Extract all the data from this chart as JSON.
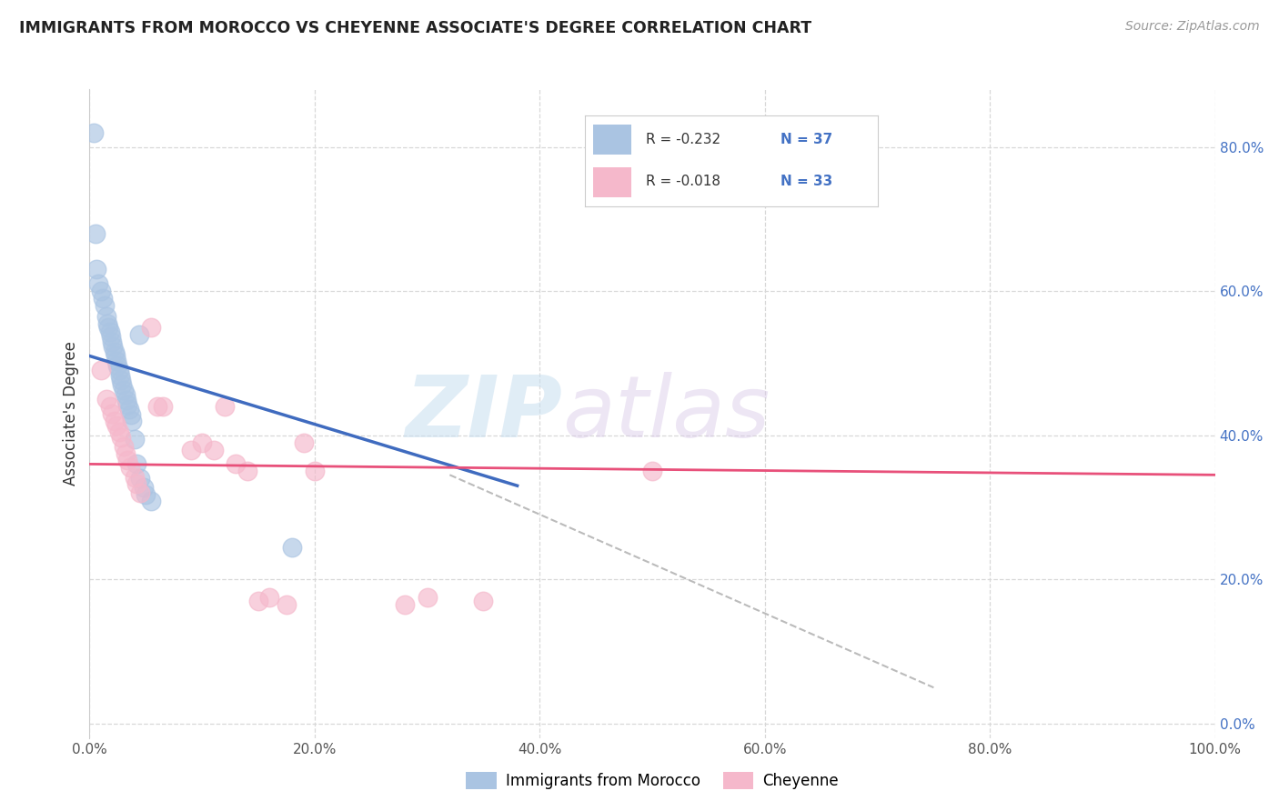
{
  "title": "IMMIGRANTS FROM MOROCCO VS CHEYENNE ASSOCIATE'S DEGREE CORRELATION CHART",
  "source": "Source: ZipAtlas.com",
  "ylabel": "Associate's Degree",
  "xlim": [
    0.0,
    1.0
  ],
  "ylim": [
    -0.02,
    0.88
  ],
  "xticks": [
    0.0,
    0.2,
    0.4,
    0.6,
    0.8,
    1.0
  ],
  "xtick_labels": [
    "0.0%",
    "20.0%",
    "40.0%",
    "60.0%",
    "80.0%",
    "100.0%"
  ],
  "yticks_right": [
    0.0,
    0.2,
    0.4,
    0.6,
    0.8
  ],
  "ytick_labels_right": [
    "0.0%",
    "20.0%",
    "40.0%",
    "60.0%",
    "80.0%"
  ],
  "legend_r1": "R = -0.232",
  "legend_n1": "N = 37",
  "legend_r2": "R = -0.018",
  "legend_n2": "N = 33",
  "blue_color": "#aac4e2",
  "pink_color": "#f5b8cb",
  "blue_line_color": "#3f6bbf",
  "pink_line_color": "#e8507a",
  "dashed_line_color": "#bbbbbb",
  "grid_color": "#d8d8d8",
  "watermark_zip": "ZIP",
  "watermark_atlas": "atlas",
  "blue_scatter_x": [
    0.004,
    0.005,
    0.006,
    0.008,
    0.01,
    0.012,
    0.013,
    0.015,
    0.016,
    0.017,
    0.018,
    0.019,
    0.02,
    0.021,
    0.022,
    0.023,
    0.024,
    0.025,
    0.026,
    0.027,
    0.028,
    0.029,
    0.03,
    0.032,
    0.033,
    0.034,
    0.035,
    0.037,
    0.038,
    0.04,
    0.042,
    0.045,
    0.048,
    0.05,
    0.055,
    0.18,
    0.044
  ],
  "blue_scatter_y": [
    0.82,
    0.68,
    0.63,
    0.61,
    0.6,
    0.59,
    0.58,
    0.565,
    0.555,
    0.55,
    0.543,
    0.537,
    0.53,
    0.523,
    0.516,
    0.51,
    0.503,
    0.497,
    0.49,
    0.483,
    0.477,
    0.47,
    0.463,
    0.456,
    0.449,
    0.443,
    0.436,
    0.429,
    0.42,
    0.395,
    0.36,
    0.34,
    0.328,
    0.318,
    0.309,
    0.245,
    0.54
  ],
  "pink_scatter_x": [
    0.01,
    0.015,
    0.018,
    0.02,
    0.022,
    0.024,
    0.026,
    0.028,
    0.03,
    0.032,
    0.034,
    0.036,
    0.04,
    0.042,
    0.045,
    0.055,
    0.06,
    0.065,
    0.09,
    0.1,
    0.11,
    0.12,
    0.13,
    0.14,
    0.15,
    0.16,
    0.175,
    0.19,
    0.2,
    0.28,
    0.3,
    0.35,
    0.5
  ],
  "pink_scatter_y": [
    0.49,
    0.45,
    0.44,
    0.43,
    0.42,
    0.413,
    0.405,
    0.397,
    0.385,
    0.375,
    0.365,
    0.355,
    0.342,
    0.333,
    0.32,
    0.55,
    0.44,
    0.44,
    0.38,
    0.39,
    0.38,
    0.44,
    0.36,
    0.35,
    0.17,
    0.175,
    0.165,
    0.39,
    0.35,
    0.165,
    0.175,
    0.17,
    0.35
  ],
  "blue_line_x": [
    0.0,
    0.38
  ],
  "blue_line_y": [
    0.51,
    0.33
  ],
  "pink_line_x": [
    0.0,
    1.0
  ],
  "pink_line_y": [
    0.36,
    0.345
  ],
  "dash_line_x": [
    0.32,
    0.75
  ],
  "dash_line_y": [
    0.345,
    0.05
  ],
  "bottom_legend_labels": [
    "Immigrants from Morocco",
    "Cheyenne"
  ]
}
